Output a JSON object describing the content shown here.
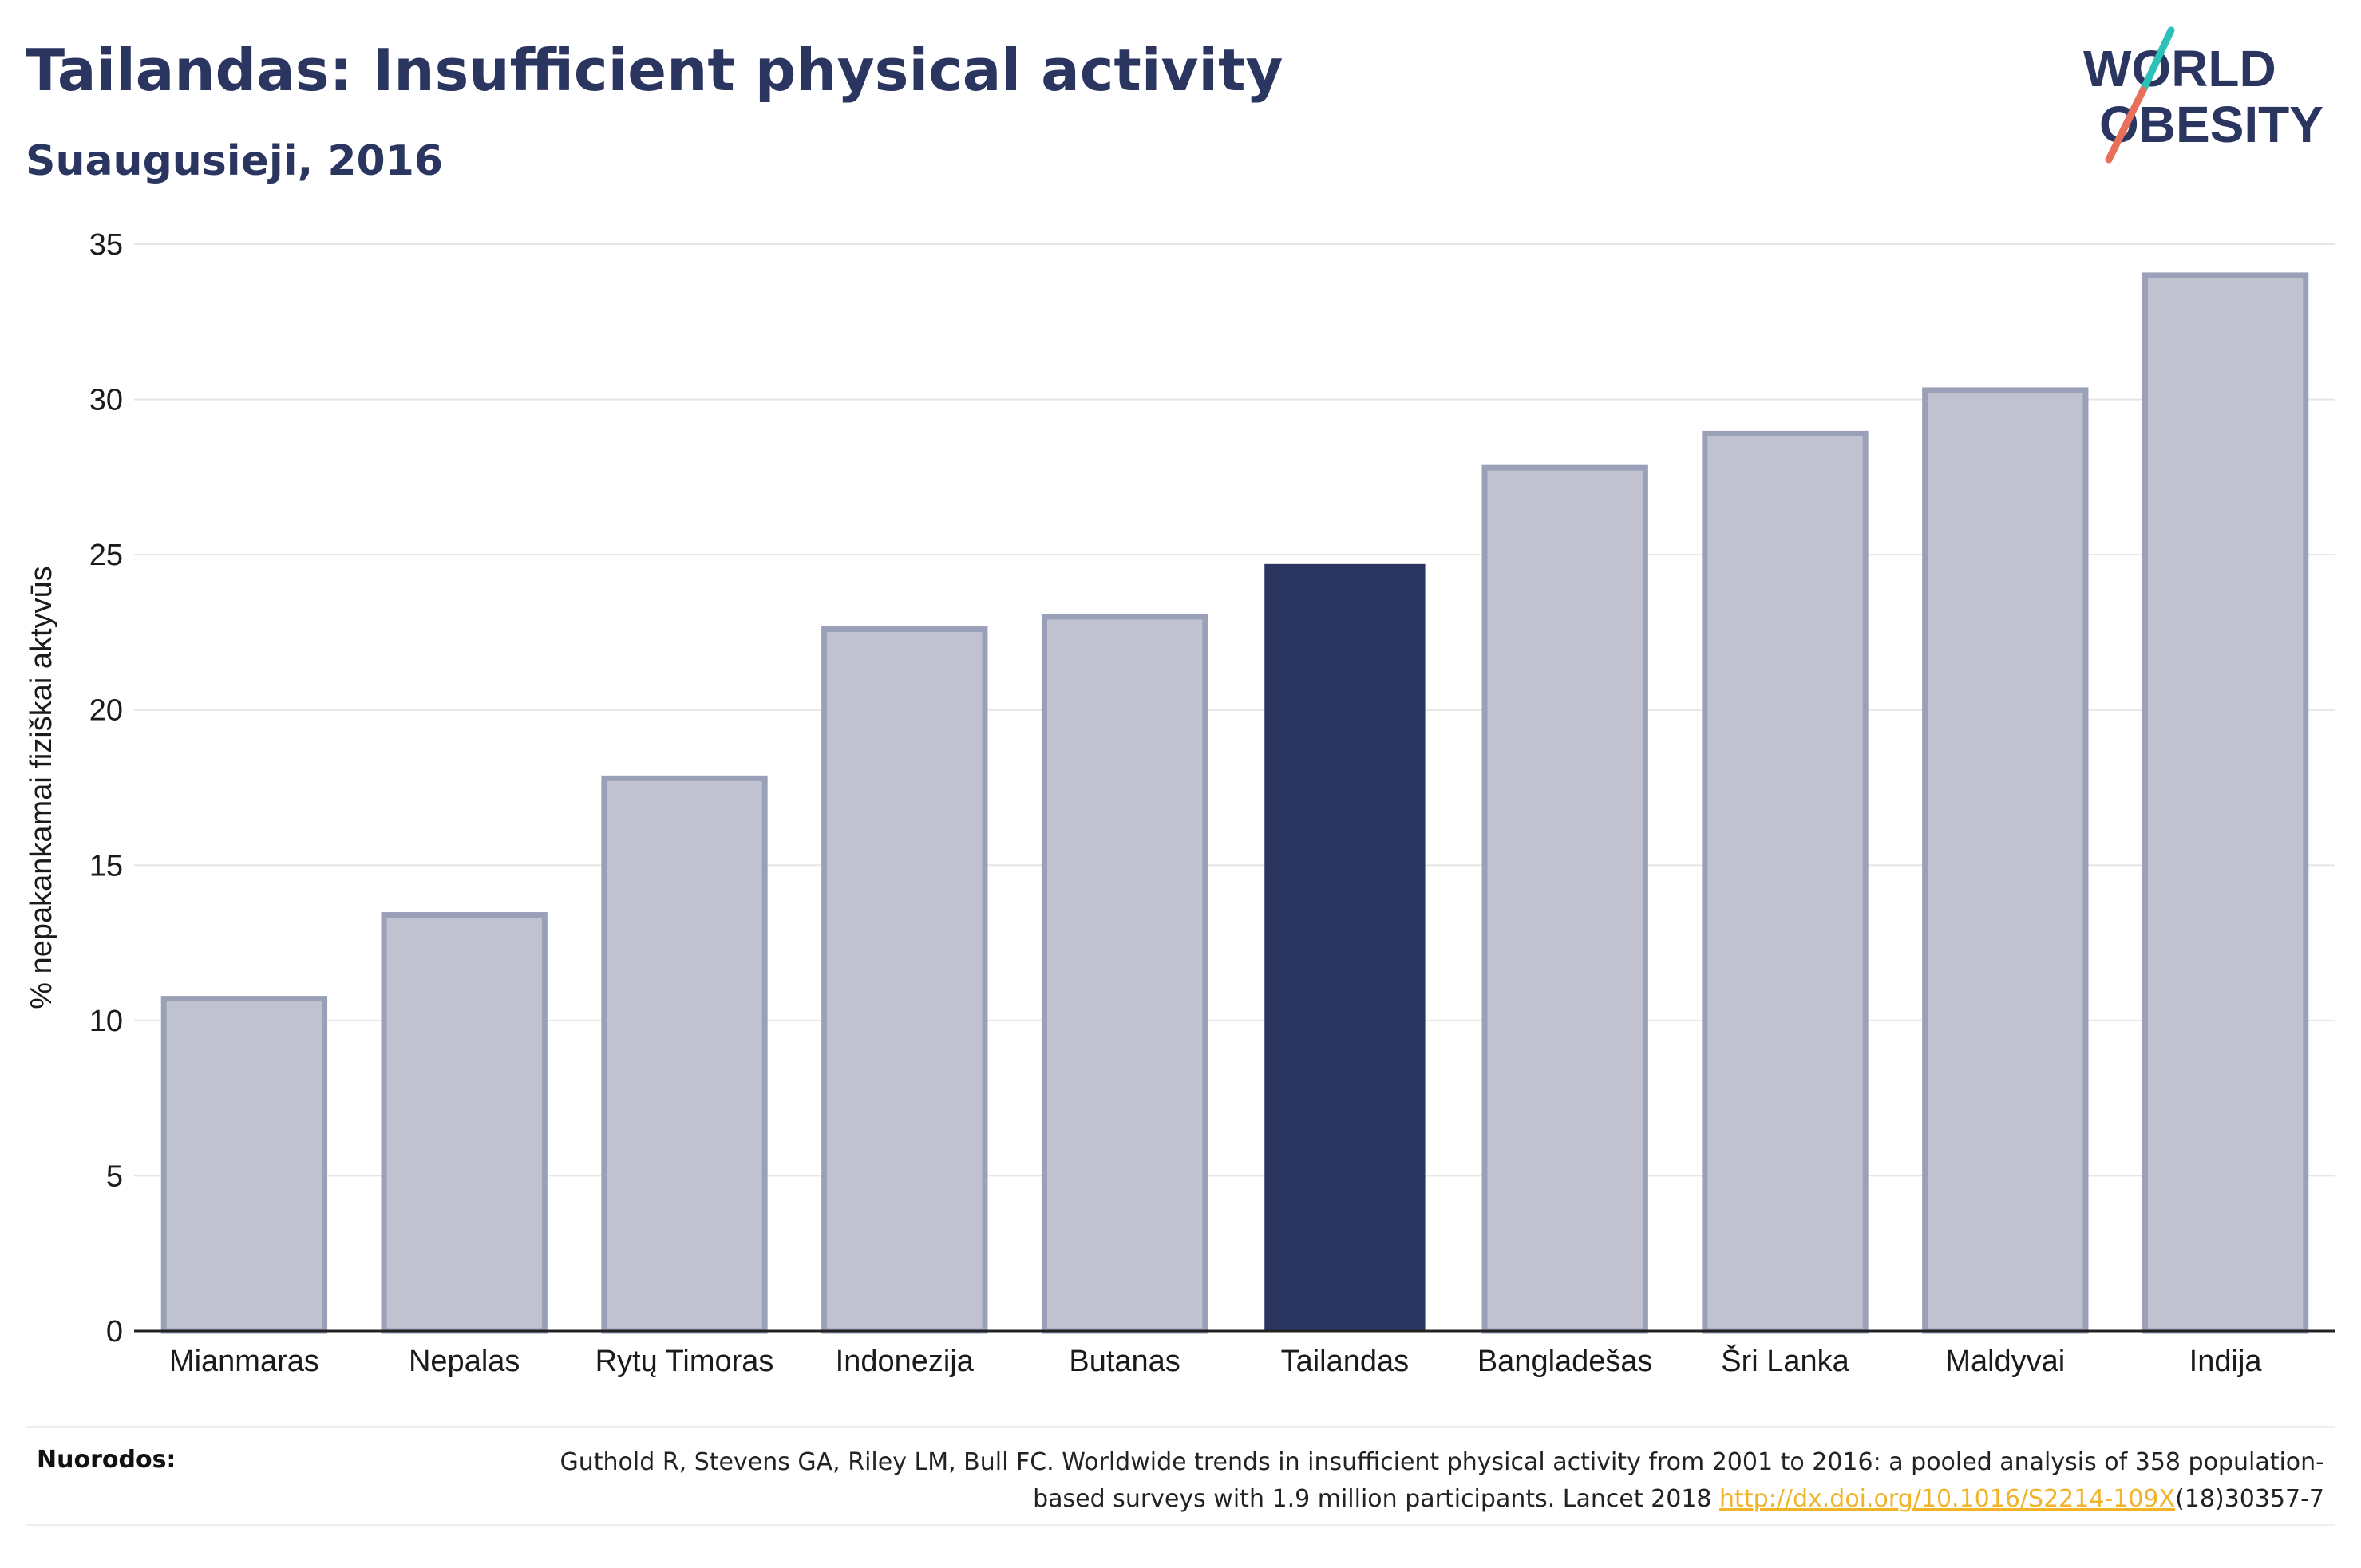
{
  "header": {
    "title": "Tailandas: Insufficient physical activity",
    "subtitle": "Suaugusieji, 2016"
  },
  "logo": {
    "line1": "WORLD",
    "line2": "OBESITY",
    "accent_colors": [
      "#2cc1b8",
      "#e8705a"
    ]
  },
  "chart_data": {
    "type": "bar",
    "categories": [
      "Mianmaras",
      "Nepalas",
      "Rytų Timoras",
      "Indonezija",
      "Butanas",
      "Tailandas",
      "Bangladešas",
      "Šri Lanka",
      "Maldyvai",
      "Indija"
    ],
    "values": [
      10.7,
      13.4,
      17.8,
      22.6,
      23.0,
      24.7,
      27.8,
      28.9,
      30.3,
      34.0
    ],
    "highlight": "Tailandas",
    "ylabel": "% nepakankamai fiziškai aktyvūs",
    "ylim": [
      0,
      35
    ],
    "yticks": [
      0,
      5,
      10,
      15,
      20,
      25,
      30,
      35
    ],
    "grid": true,
    "colors": {
      "bar": "#c0c3cf",
      "bar_border": "#9aa0b8",
      "highlight": "#2b3660"
    }
  },
  "references": {
    "label": "Nuorodos:",
    "text_before": "Guthold R, Stevens GA, Riley LM, Bull FC. Worldwide trends in insufficient physical activity from 2001 to 2016: a pooled analysis of 358 population-based surveys with 1.9 million participants. Lancet 2018 ",
    "link_text": "http://dx.doi.org/10.1016/S2214-109X",
    "text_after": "(18)30357-7"
  }
}
